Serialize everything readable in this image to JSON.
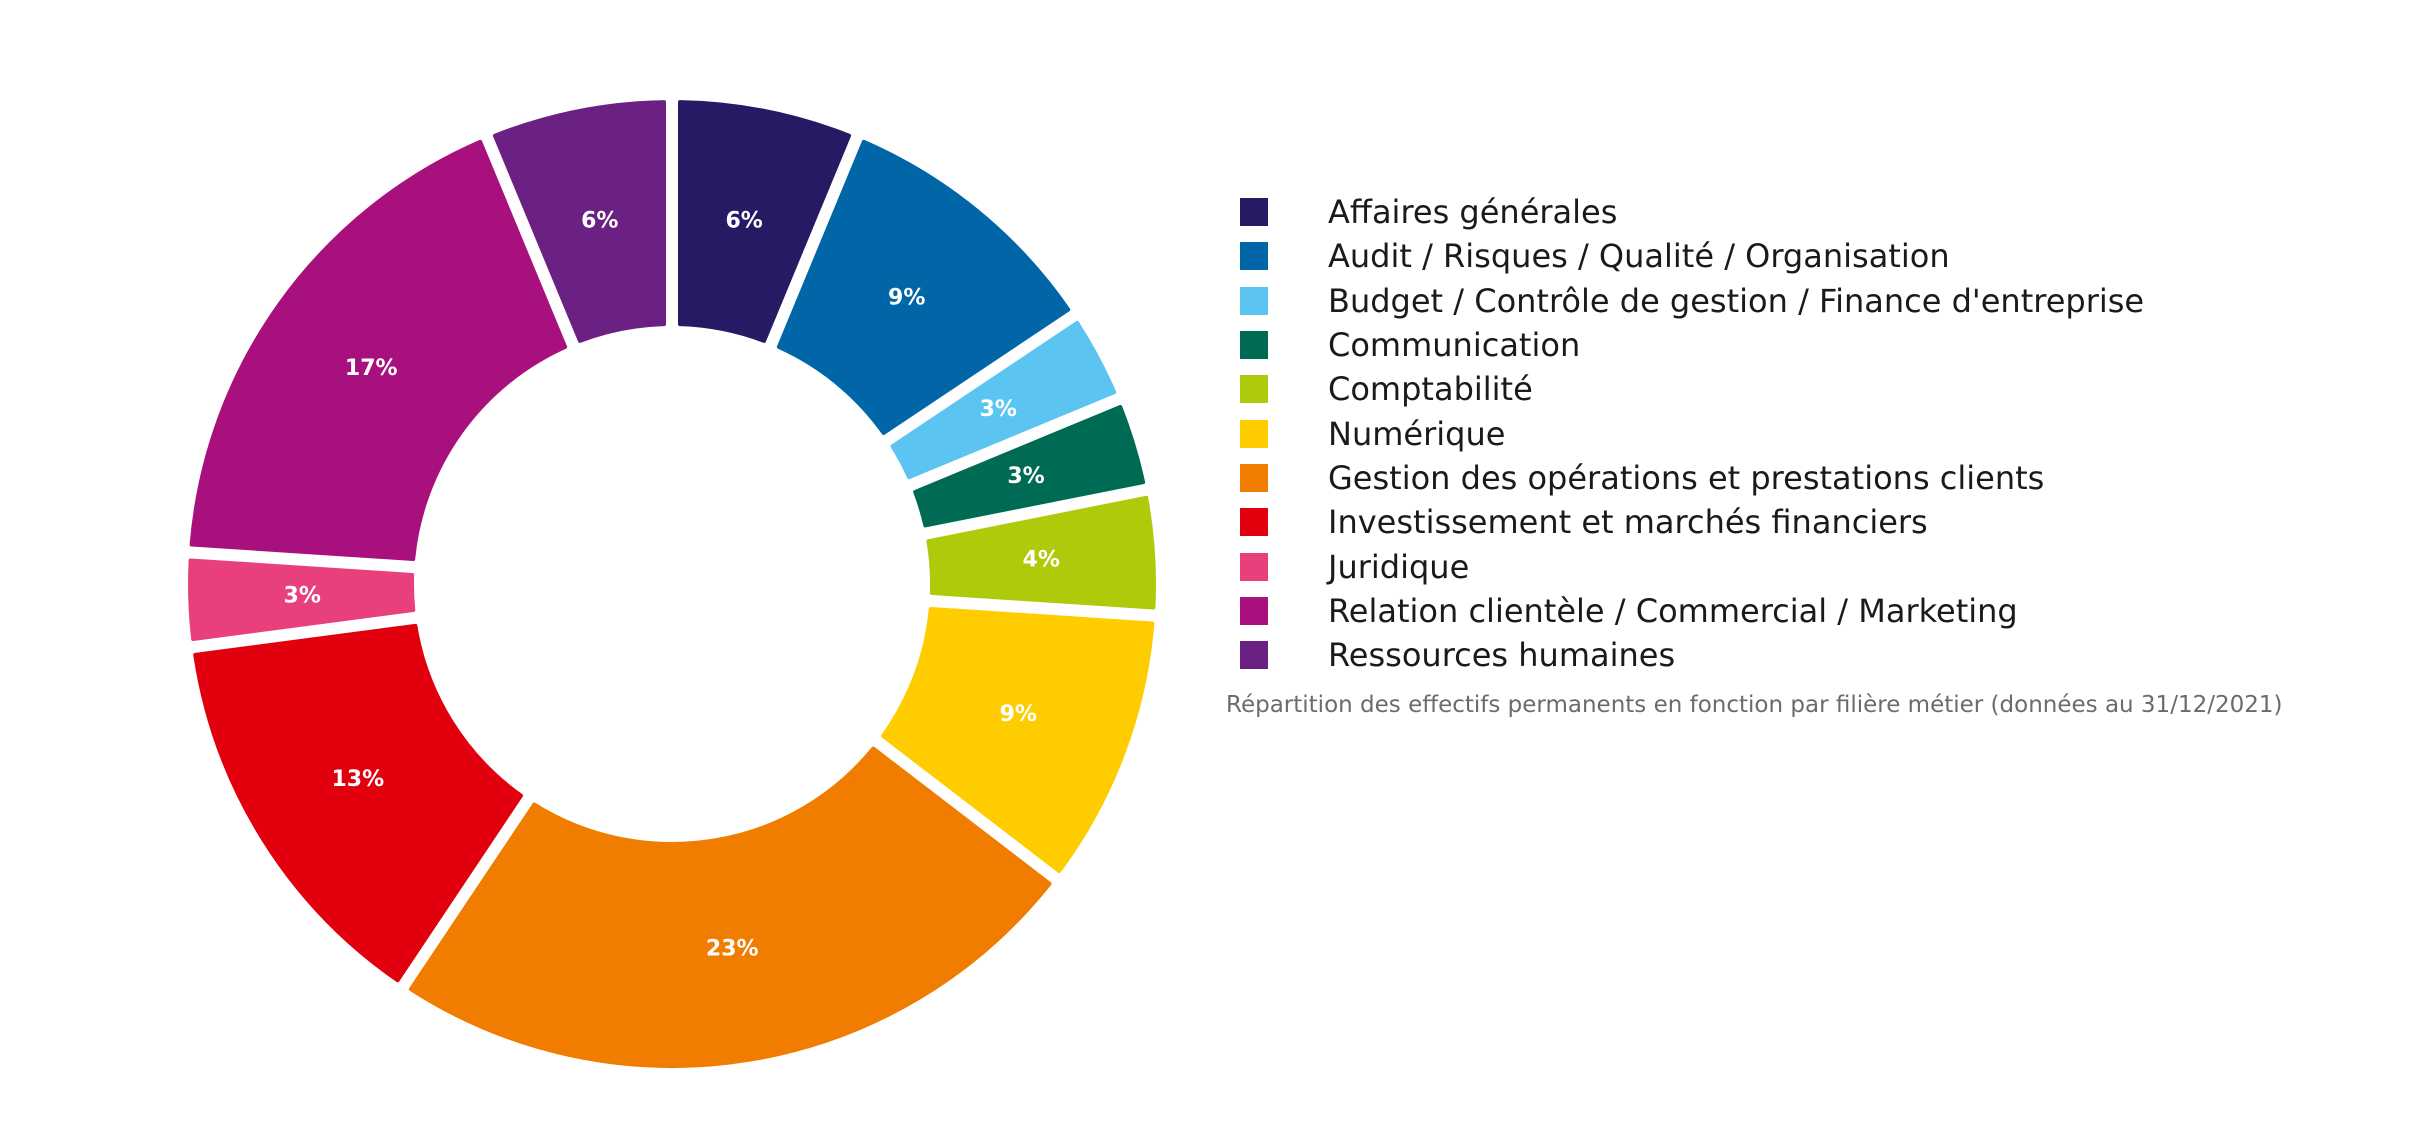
{
  "chart_data": {
    "type": "pie",
    "donut": true,
    "categories": [
      "Affaires générales",
      "Audit / Risques / Qualité / Organisation",
      "Budget / Contrôle de gestion / Finance d'entreprise",
      "Communication",
      "Comptabilité",
      "Numérique",
      "Gestion des opérations et prestations clients",
      "Investissement et marchés financiers",
      "Juridique",
      "Relation clientèle / Commercial / Marketing",
      "Ressources humaines"
    ],
    "values": [
      6,
      9,
      3,
      3,
      4,
      9,
      23,
      13,
      3,
      17,
      6
    ],
    "value_labels": [
      "6%",
      "9%",
      "3%",
      "3%",
      "4%",
      "9%",
      "23%",
      "13%",
      "3%",
      "17%",
      "6%"
    ],
    "colors": [
      "#261A64",
      "#0066A8",
      "#5BC4F1",
      "#006B54",
      "#AFCA0B",
      "#FFCC00",
      "#F07C00",
      "#E2000F",
      "#E8407D",
      "#A8107E",
      "#6A2183"
    ],
    "legend_position": "right",
    "caption": "Répartition des effectifs permanents en fonction par filière métier (données au 31/12/2021)"
  }
}
